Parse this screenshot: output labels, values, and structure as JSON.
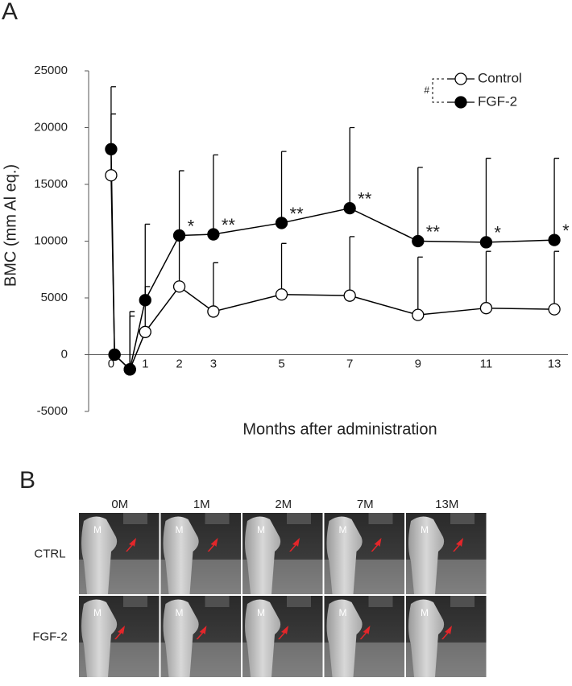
{
  "panel_a": {
    "label": "A"
  },
  "chart_data": {
    "type": "line",
    "x": [
      0,
      0.1,
      0.55,
      1,
      2,
      3,
      5,
      7,
      9,
      11,
      13
    ],
    "series": [
      {
        "name": "Control",
        "color": "#ffffff",
        "values": [
          15800,
          0,
          -1300,
          2000,
          6000,
          3800,
          5300,
          5200,
          3500,
          4100,
          4000
        ],
        "errors": [
          5400,
          null,
          4700,
          4000,
          4500,
          4300,
          4500,
          5200,
          5100,
          5000,
          5100
        ]
      },
      {
        "name": "FGF-2",
        "color": "#000000",
        "values": [
          18100,
          0,
          -1300,
          4800,
          10500,
          10600,
          11600,
          12900,
          10000,
          9900,
          10100
        ],
        "errors": [
          5500,
          null,
          5100,
          6700,
          5700,
          7000,
          6300,
          7100,
          6500,
          7400,
          7200
        ]
      }
    ],
    "xlabel": "Months after administration",
    "ylabel": "BMC (mm Al eq.)",
    "xlim": [
      -0.66,
      13.4
    ],
    "xticks": [
      0,
      1,
      2,
      3,
      5,
      7,
      9,
      11,
      13
    ],
    "ylim": [
      -5000,
      25000
    ],
    "yticks": [
      -5000,
      0,
      5000,
      10000,
      15000,
      20000,
      25000
    ],
    "annotations": [
      {
        "text": "*",
        "x": 2
      },
      {
        "text": "**",
        "x": 3
      },
      {
        "text": "**",
        "x": 5
      },
      {
        "text": "**",
        "x": 7
      },
      {
        "text": "**",
        "x": 9
      },
      {
        "text": "*",
        "x": 11
      },
      {
        "text": "*",
        "x": 13
      }
    ],
    "legend_note": "#",
    "legend": "top-right",
    "grid": false
  },
  "panel_b": {
    "label": "B",
    "columns": [
      "0M",
      "1M",
      "2M",
      "7M",
      "13M"
    ],
    "rows": [
      "CTRL",
      "FGF-2"
    ],
    "tooth_label": "M"
  }
}
